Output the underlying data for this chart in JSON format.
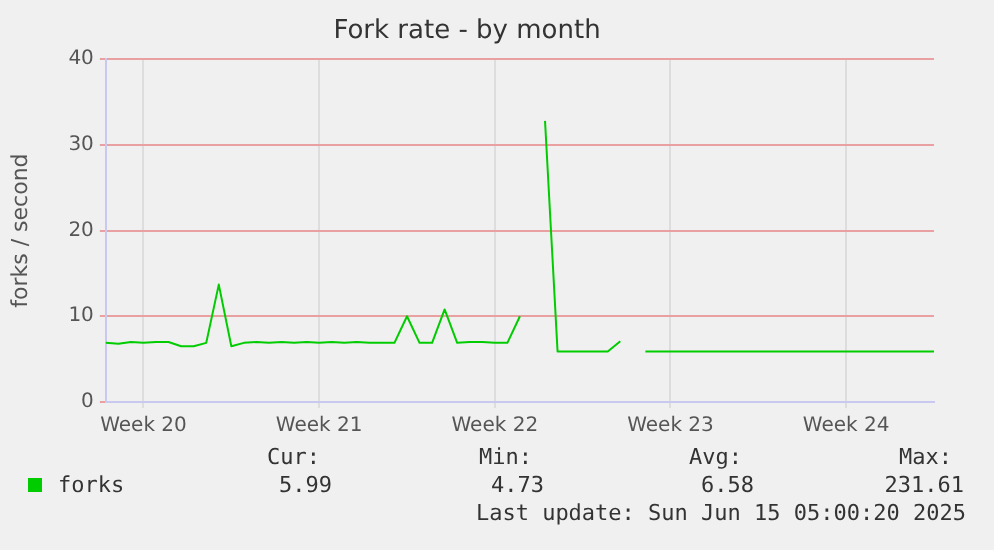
{
  "chart_data": {
    "type": "line",
    "title": "Fork rate - by month",
    "ylabel": "forks / second",
    "categories": [
      null,
      null,
      null,
      "Week 20",
      null,
      null,
      null,
      null,
      null,
      null,
      null,
      null,
      null,
      null,
      null,
      null,
      null,
      "Week 21",
      null,
      null,
      null,
      null,
      null,
      null,
      null,
      null,
      null,
      null,
      null,
      null,
      null,
      "Week 22",
      null,
      null,
      null,
      null,
      null,
      null,
      null,
      null,
      null,
      null,
      null,
      null,
      null,
      "Week 23",
      null,
      null,
      null,
      null,
      null,
      null,
      null,
      null,
      null,
      null,
      null,
      null,
      null,
      "Week 24",
      null,
      null,
      null,
      null,
      null,
      null,
      null
    ],
    "series": [
      {
        "name": "forks",
        "color": "#00cc00",
        "values": [
          6.9,
          6.8,
          7.0,
          6.9,
          7.0,
          7.0,
          6.5,
          6.5,
          6.9,
          13.7,
          6.5,
          6.9,
          7.0,
          6.9,
          7.0,
          6.9,
          7.0,
          6.9,
          7.0,
          6.9,
          7.0,
          6.9,
          6.9,
          6.9,
          10.0,
          6.9,
          6.9,
          10.8,
          6.9,
          7.0,
          7.0,
          6.9,
          6.9,
          10.0,
          null,
          32.8,
          5.9,
          5.9,
          5.9,
          5.9,
          5.9,
          7.1,
          null,
          5.9,
          5.9,
          5.9,
          5.9,
          5.9,
          5.9,
          5.9,
          5.9,
          5.9,
          5.9,
          5.9,
          5.9,
          5.9,
          5.9,
          5.9,
          5.9,
          5.9,
          5.9,
          5.9,
          5.9,
          5.9,
          5.9,
          5.9,
          5.9
        ]
      }
    ],
    "ylim": [
      0,
      40
    ],
    "yticks": [
      0,
      10,
      20,
      30,
      40
    ],
    "grid": true,
    "legend": "bottom left",
    "annotations": [
      "Cur:",
      "Min:",
      "Avg:",
      "Max:",
      "5.99",
      "4.73",
      "6.58",
      "231.61",
      "Last update: Sun Jun 15 05:00:20 2025"
    ]
  }
}
